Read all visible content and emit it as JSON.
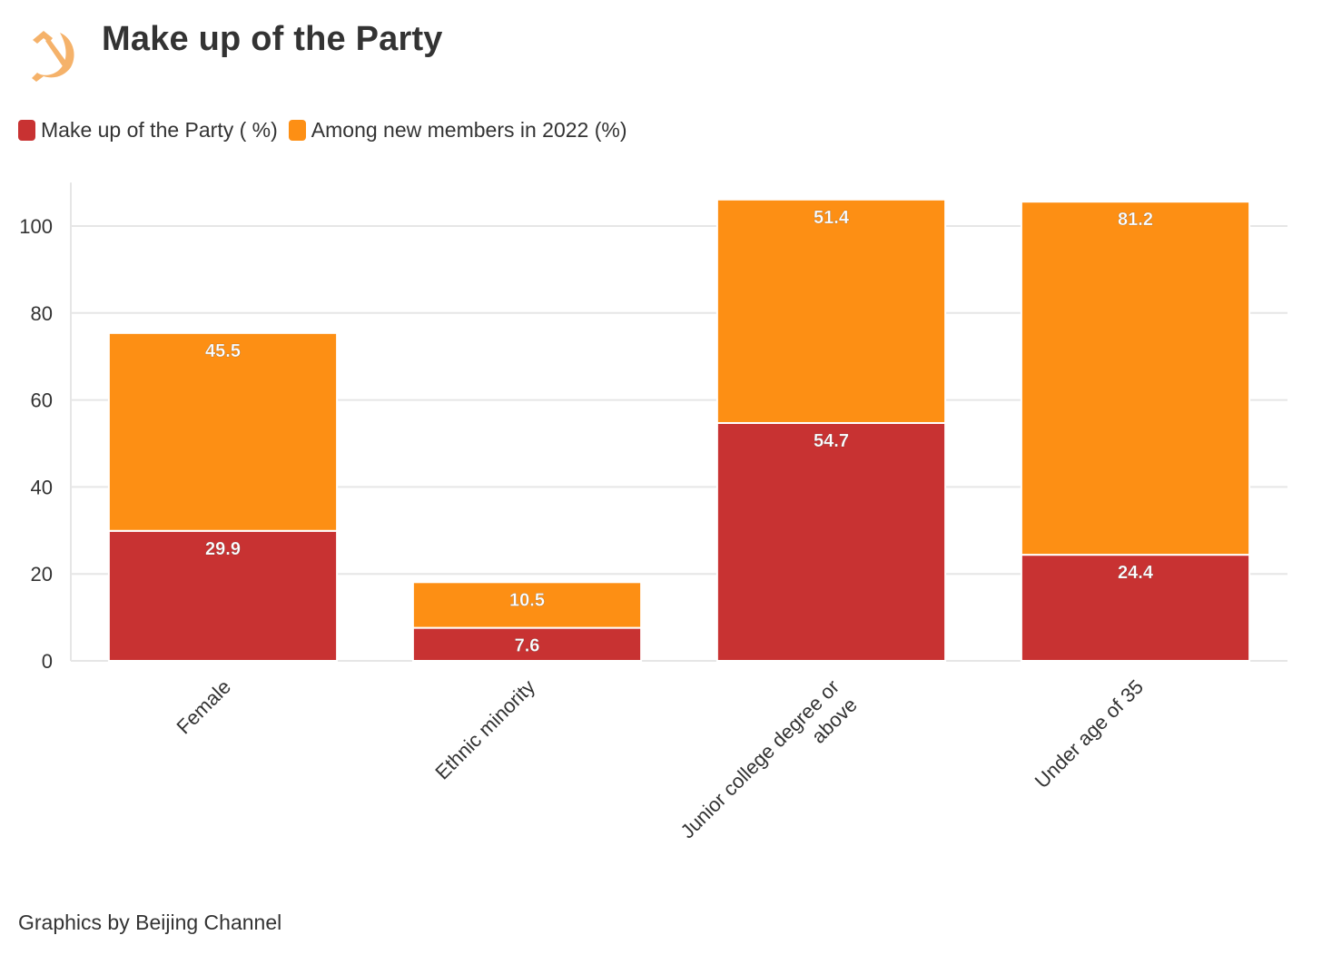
{
  "header": {
    "title": "Make up of the Party",
    "logo_icon": "hammer-and-sickle-icon"
  },
  "legend": {
    "items": [
      {
        "label": "Make up of the Party ( %)",
        "color": "#c83232"
      },
      {
        "label": "Among new members in 2022 (%)",
        "color": "#fd8f14"
      }
    ]
  },
  "footer": {
    "credit": "Graphics by Beijing Channel"
  },
  "colors": {
    "party": "#c83232",
    "new_members": "#fd8f14",
    "logo": "#f5b26a",
    "grid": "#e6e6e6",
    "axis_text": "#333333"
  },
  "chart_data": {
    "type": "bar",
    "stacked": true,
    "categories": [
      "Female",
      "Ethnic minority",
      "Junior college degree or above",
      "Under age of 35"
    ],
    "series": [
      {
        "name": "Make up of the Party ( %)",
        "values": [
          29.9,
          7.6,
          54.7,
          24.4
        ]
      },
      {
        "name": "Among new members in 2022 (%)",
        "values": [
          45.5,
          10.5,
          51.4,
          81.2
        ]
      }
    ],
    "ylim": [
      0,
      110
    ],
    "yticks": [
      0,
      20,
      40,
      60,
      80,
      100
    ],
    "grid": true,
    "xlabel": "",
    "ylabel": ""
  }
}
